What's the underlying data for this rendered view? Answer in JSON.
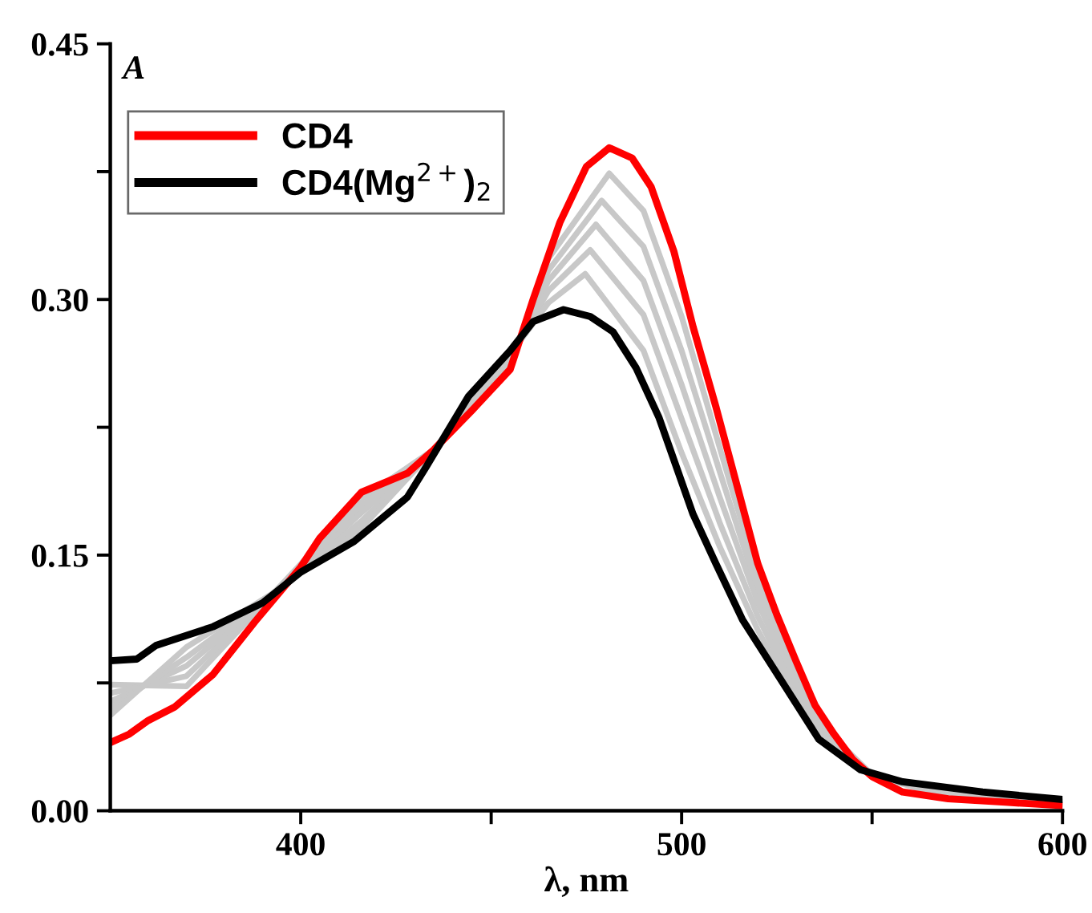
{
  "chart_data": {
    "type": "line",
    "xlabel": "λ, nm",
    "ylabel": "A",
    "xlim": [
      350,
      600
    ],
    "xticks": [
      400,
      {
        "value": 450,
        "label": null
      },
      500,
      {
        "value": 550,
        "label": null
      },
      600
    ],
    "ylim": [
      0,
      0.45
    ],
    "yticks": [
      {
        "value": 0,
        "label": "0.00"
      },
      {
        "value": 0.075,
        "label": null
      },
      {
        "value": 0.15,
        "label": "0.15"
      },
      {
        "value": 0.225,
        "label": null
      },
      {
        "value": 0.3,
        "label": "0.30"
      },
      {
        "value": 0.375,
        "label": null
      },
      {
        "value": 0.45,
        "label": "0.45"
      }
    ],
    "grid": false,
    "legend": "top left",
    "marker": "none",
    "line_style": "solid",
    "series": [
      {
        "color": "#c8c8c8",
        "x": [
          350,
          370,
          393,
          416,
          435,
          455,
          465,
          481,
          490,
          500,
          510,
          520,
          530,
          540,
          550,
          570,
          600
        ],
        "values": [
          0.074,
          0.073,
          0.128,
          0.183,
          0.212,
          0.261,
          0.324,
          0.374,
          0.352,
          0.29,
          0.213,
          0.137,
          0.083,
          0.043,
          0.021,
          0.008,
          0.004
        ]
      },
      {
        "color": "#c8c8c8",
        "x": [
          350,
          370,
          393,
          416,
          435,
          455,
          465,
          479,
          490,
          500,
          510,
          520,
          530,
          540,
          550,
          570,
          600
        ],
        "values": [
          0.069,
          0.079,
          0.128,
          0.179,
          0.212,
          0.263,
          0.317,
          0.358,
          0.331,
          0.27,
          0.199,
          0.129,
          0.079,
          0.042,
          0.021,
          0.009,
          0.004
        ]
      },
      {
        "color": "#c8c8c8",
        "x": [
          350,
          370,
          393,
          416,
          435,
          455,
          465,
          477.5,
          490,
          500,
          510,
          520,
          530,
          540,
          550,
          570,
          600
        ],
        "values": [
          0.064,
          0.085,
          0.128,
          0.175,
          0.212,
          0.265,
          0.311,
          0.344,
          0.311,
          0.25,
          0.184,
          0.122,
          0.074,
          0.04,
          0.021,
          0.01,
          0.005
        ]
      },
      {
        "color": "#c8c8c8",
        "x": [
          350,
          370,
          393,
          416,
          435,
          455,
          465,
          476,
          490,
          500,
          510,
          520,
          530,
          540,
          550,
          570,
          600
        ],
        "values": [
          0.06,
          0.09,
          0.128,
          0.17,
          0.212,
          0.266,
          0.305,
          0.329,
          0.291,
          0.23,
          0.169,
          0.114,
          0.069,
          0.038,
          0.021,
          0.011,
          0.005
        ]
      },
      {
        "color": "#c8c8c8",
        "x": [
          350,
          370,
          393,
          416,
          435,
          455,
          465,
          474.7,
          490,
          500,
          510,
          520,
          530,
          540,
          550,
          570,
          600
        ],
        "values": [
          0.056,
          0.096,
          0.128,
          0.166,
          0.212,
          0.268,
          0.298,
          0.315,
          0.27,
          0.21,
          0.155,
          0.106,
          0.065,
          0.037,
          0.021,
          0.012,
          0.006
        ]
      },
      {
        "name": "CD4",
        "color": "#ff0000",
        "x": [
          350,
          355,
          360,
          367,
          377,
          388,
          400,
          405,
          416,
          428,
          435,
          445,
          455,
          461,
          468,
          475,
          481,
          487,
          492,
          498,
          503,
          509,
          515,
          520,
          525,
          530,
          535,
          540,
          545,
          550,
          558,
          570,
          585,
          600
        ],
        "values": [
          0.04,
          0.045,
          0.053,
          0.061,
          0.08,
          0.111,
          0.143,
          0.16,
          0.187,
          0.198,
          0.212,
          0.235,
          0.259,
          0.3,
          0.345,
          0.378,
          0.389,
          0.383,
          0.366,
          0.328,
          0.284,
          0.237,
          0.187,
          0.145,
          0.115,
          0.088,
          0.062,
          0.045,
          0.03,
          0.02,
          0.011,
          0.007,
          0.005,
          0.003
        ]
      },
      {
        "name": "CD4(Mg$^{2+}$)$_{2}$",
        "color": "#000000",
        "x": [
          350,
          357,
          362,
          377,
          390,
          400,
          414,
          428,
          433,
          444,
          455,
          461,
          469,
          476,
          482,
          488,
          494,
          503,
          509,
          516,
          526,
          536,
          547,
          558,
          579,
          600
        ],
        "values": [
          0.088,
          0.089,
          0.097,
          0.108,
          0.122,
          0.14,
          0.158,
          0.184,
          0.202,
          0.243,
          0.27,
          0.287,
          0.294,
          0.29,
          0.281,
          0.26,
          0.231,
          0.174,
          0.145,
          0.112,
          0.077,
          0.042,
          0.024,
          0.017,
          0.011,
          0.0066
        ]
      }
    ]
  }
}
